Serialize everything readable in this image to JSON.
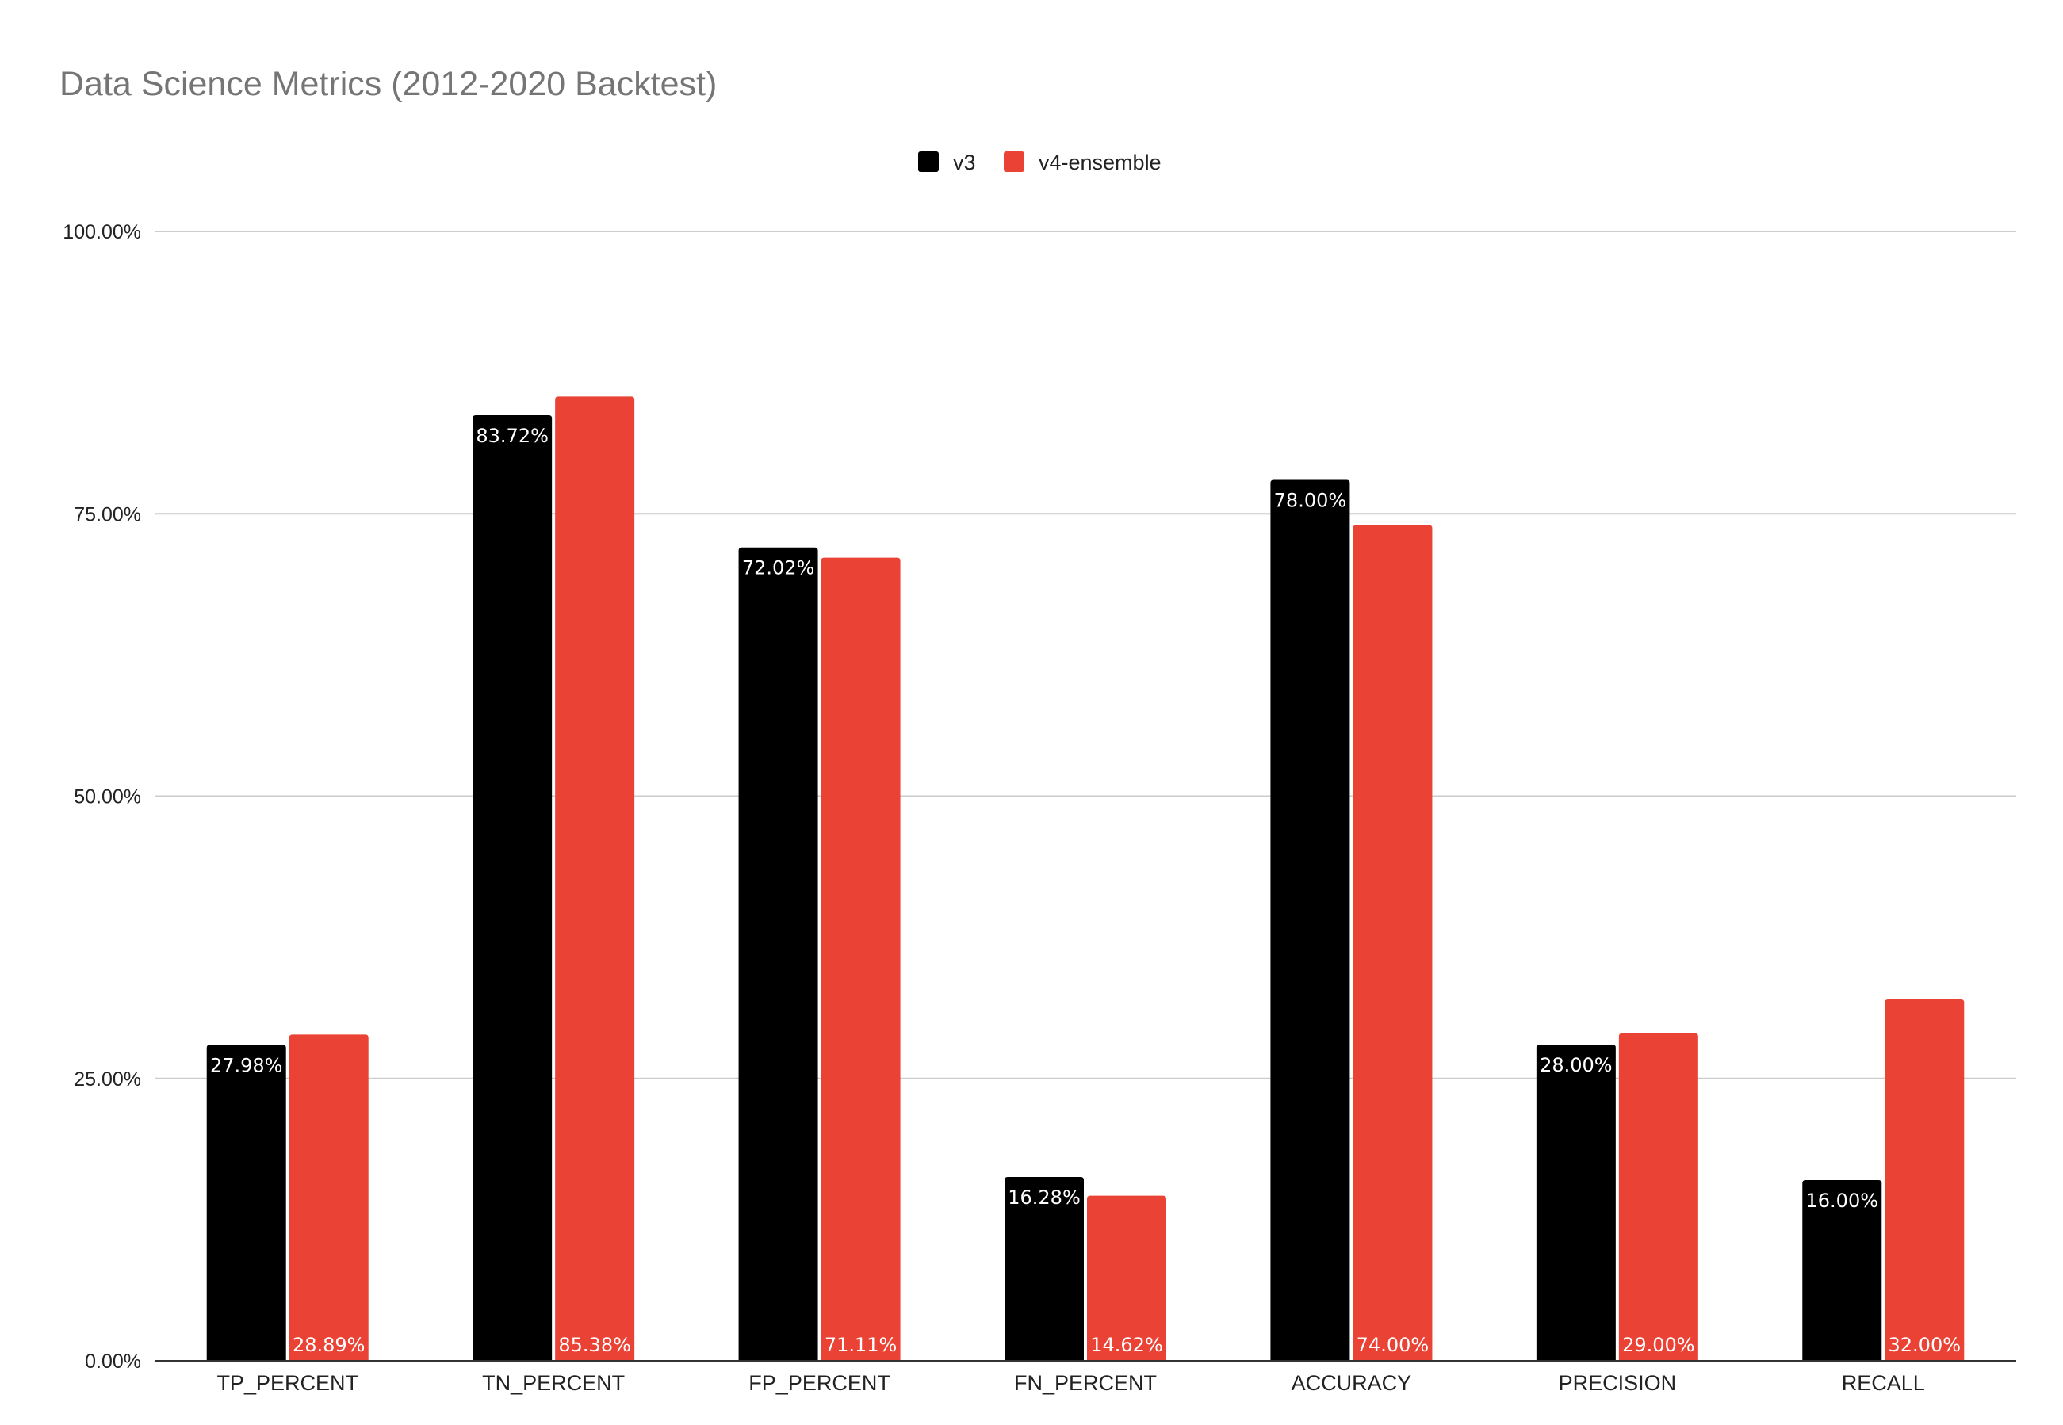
{
  "chart_data": {
    "type": "bar",
    "title": "Data Science Metrics (2012-2020 Backtest)",
    "xlabel": "",
    "ylabel": "",
    "categories": [
      "TP_PERCENT",
      "TN_PERCENT",
      "FP_PERCENT",
      "FN_PERCENT",
      "ACCURACY",
      "PRECISION",
      "RECALL"
    ],
    "series": [
      {
        "name": "v3",
        "color": "#000000",
        "values": [
          27.98,
          83.72,
          72.02,
          16.28,
          78.0,
          28.0,
          16.0
        ],
        "labels": [
          "27.98%",
          "83.72%",
          "72.02%",
          "16.28%",
          "78.00%",
          "28.00%",
          "16.00%"
        ],
        "label_position": "inside-top"
      },
      {
        "name": "v4-ensemble",
        "color": "#ea4335",
        "values": [
          28.89,
          85.38,
          71.11,
          14.62,
          74.0,
          29.0,
          32.0
        ],
        "labels": [
          "28.89%",
          "85.38%",
          "71.11%",
          "14.62%",
          "74.00%",
          "29.00%",
          "32.00%"
        ],
        "label_position": "inside-bottom"
      }
    ],
    "ylim": [
      0,
      100
    ],
    "yticks": [
      0,
      25,
      50,
      75,
      100
    ],
    "ytick_labels": [
      "0.00%",
      "25.00%",
      "50.00%",
      "75.00%",
      "100.00%"
    ],
    "grid": true,
    "legend_position": "top-center"
  }
}
